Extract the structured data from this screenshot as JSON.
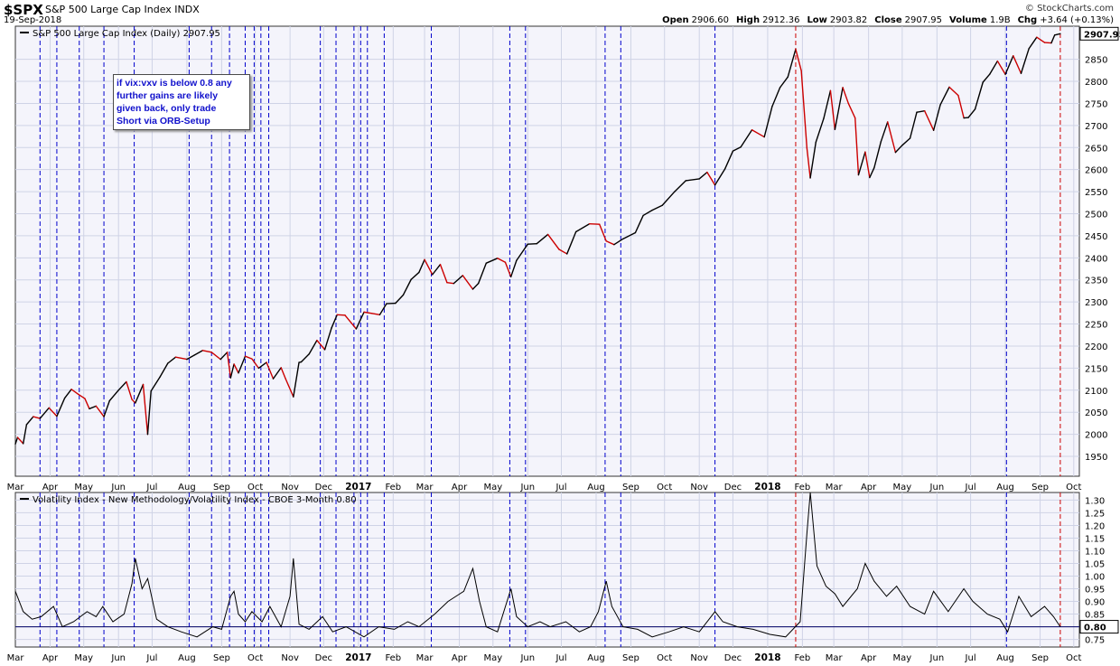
{
  "header": {
    "symbol": "$SPX",
    "name": "S&P 500 Large Cap Index INDX",
    "date": "19-Sep-2018",
    "brand": "© StockCharts.com",
    "quote": [
      {
        "label": "Open",
        "value": "2906.60"
      },
      {
        "label": "High",
        "value": "2912.36"
      },
      {
        "label": "Low",
        "value": "2903.82"
      },
      {
        "label": "Close",
        "value": "2907.95"
      },
      {
        "label": "Volume",
        "value": "1.9B"
      },
      {
        "label": "Chg",
        "value": "+3.64 (+0.13%)"
      }
    ]
  },
  "annotation": {
    "lines": [
      "if vix:vxv is below 0.8 any",
      "further gains are likely",
      "given back, only trade",
      "Short via ORB-Setup"
    ]
  },
  "colors": {
    "up_line": "#000000",
    "down_line": "#cc0000",
    "signal_blue": "#0000cc",
    "signal_red": "#cc0000",
    "plot_bg": "#f4f4fb",
    "grid": "#cfd3e6"
  },
  "chart_data": [
    {
      "type": "line",
      "title": "S&P 500 Large Cap Index (Daily) 2907.95",
      "last_value_label": "2907.95",
      "ylim": [
        1905,
        2925
      ],
      "y_ticks": [
        1950,
        2000,
        2050,
        2100,
        2150,
        2200,
        2250,
        2300,
        2350,
        2400,
        2450,
        2500,
        2550,
        2600,
        2650,
        2700,
        2750,
        2800,
        2850
      ],
      "grid": true,
      "series": [
        {
          "x": [
            "2016-03-01",
            "2016-03-03",
            "2016-03-08",
            "2016-03-11",
            "2016-03-17",
            "2016-03-23",
            "2016-03-31",
            "2016-04-07",
            "2016-04-14",
            "2016-04-20",
            "2016-04-26",
            "2016-05-02",
            "2016-05-06",
            "2016-05-12",
            "2016-05-19",
            "2016-05-24",
            "2016-06-01",
            "2016-06-08",
            "2016-06-13",
            "2016-06-16",
            "2016-06-23",
            "2016-06-27",
            "2016-06-30",
            "2016-07-08",
            "2016-07-15",
            "2016-07-22",
            "2016-08-01",
            "2016-08-08",
            "2016-08-15",
            "2016-08-23",
            "2016-08-31",
            "2016-09-06",
            "2016-09-09",
            "2016-09-12",
            "2016-09-16",
            "2016-09-22",
            "2016-09-28",
            "2016-10-04",
            "2016-10-11",
            "2016-10-17",
            "2016-10-24",
            "2016-10-28",
            "2016-11-04",
            "2016-11-09",
            "2016-11-11",
            "2016-11-18",
            "2016-11-25",
            "2016-12-02",
            "2016-12-08",
            "2016-12-13",
            "2016-12-20",
            "2016-12-30",
            "2017-01-06",
            "2017-01-13",
            "2017-01-20",
            "2017-01-26",
            "2017-02-03",
            "2017-02-10",
            "2017-02-17",
            "2017-02-24",
            "2017-03-01",
            "2017-03-08",
            "2017-03-15",
            "2017-03-21",
            "2017-03-27",
            "2017-04-04",
            "2017-04-13",
            "2017-04-18",
            "2017-04-25",
            "2017-05-05",
            "2017-05-12",
            "2017-05-17",
            "2017-05-22",
            "2017-06-01",
            "2017-06-09",
            "2017-06-19",
            "2017-06-29",
            "2017-07-06",
            "2017-07-14",
            "2017-07-26",
            "2017-08-04",
            "2017-08-10",
            "2017-08-17",
            "2017-08-25",
            "2017-09-05",
            "2017-09-12",
            "2017-09-20",
            "2017-09-29",
            "2017-10-10",
            "2017-10-20",
            "2017-11-01",
            "2017-11-08",
            "2017-11-15",
            "2017-11-24",
            "2017-12-01",
            "2017-12-08",
            "2017-12-18",
            "2017-12-29",
            "2018-01-05",
            "2018-01-12",
            "2018-01-19",
            "2018-01-26",
            "2018-01-31",
            "2018-02-05",
            "2018-02-08",
            "2018-02-13",
            "2018-02-20",
            "2018-02-26",
            "2018-03-02",
            "2018-03-09",
            "2018-03-14",
            "2018-03-20",
            "2018-03-23",
            "2018-03-29",
            "2018-04-02",
            "2018-04-06",
            "2018-04-12",
            "2018-04-18",
            "2018-04-25",
            "2018-05-01",
            "2018-05-08",
            "2018-05-14",
            "2018-05-21",
            "2018-05-29",
            "2018-06-04",
            "2018-06-12",
            "2018-06-20",
            "2018-06-25",
            "2018-06-29",
            "2018-07-05",
            "2018-07-12",
            "2018-07-18",
            "2018-07-25",
            "2018-08-01",
            "2018-08-08",
            "2018-08-15",
            "2018-08-22",
            "2018-08-29",
            "2018-09-05",
            "2018-09-11",
            "2018-09-14",
            "2018-09-19"
          ],
          "values": [
            1978,
            1993,
            1979,
            2022,
            2040,
            2036,
            2060,
            2041,
            2082,
            2102,
            2091,
            2081,
            2058,
            2064,
            2040,
            2076,
            2100,
            2119,
            2079,
            2071,
            2113,
            2000,
            2098,
            2130,
            2161,
            2175,
            2170,
            2180,
            2190,
            2186,
            2170,
            2186,
            2128,
            2159,
            2139,
            2177,
            2171,
            2150,
            2163,
            2126,
            2151,
            2126,
            2085,
            2163,
            2164,
            2182,
            2213,
            2192,
            2241,
            2271,
            2270,
            2239,
            2277,
            2274,
            2271,
            2296,
            2297,
            2316,
            2351,
            2367,
            2396,
            2362,
            2385,
            2344,
            2342,
            2360,
            2329,
            2342,
            2388,
            2399,
            2390,
            2357,
            2394,
            2431,
            2432,
            2453,
            2419,
            2409,
            2459,
            2477,
            2476,
            2438,
            2430,
            2443,
            2457,
            2496,
            2508,
            2519,
            2550,
            2575,
            2579,
            2594,
            2565,
            2602,
            2642,
            2651,
            2690,
            2674,
            2743,
            2786,
            2810,
            2873,
            2824,
            2649,
            2581,
            2662,
            2716,
            2779,
            2691,
            2786,
            2750,
            2717,
            2588,
            2640,
            2582,
            2604,
            2663,
            2708,
            2639,
            2655,
            2671,
            2730,
            2733,
            2689,
            2747,
            2787,
            2768,
            2717,
            2718,
            2737,
            2798,
            2816,
            2846,
            2816,
            2858,
            2818,
            2874,
            2900,
            2888,
            2887,
            2905,
            2908
          ]
        }
      ],
      "signal_dates_blue": [
        "2016-03-23",
        "2016-04-07",
        "2016-04-27",
        "2016-05-19",
        "2016-06-15",
        "2016-08-03",
        "2016-08-23",
        "2016-09-08",
        "2016-09-22",
        "2016-09-30",
        "2016-10-06",
        "2016-10-13",
        "2016-11-28",
        "2016-12-12",
        "2016-12-28",
        "2017-01-03",
        "2017-01-09",
        "2017-01-24",
        "2017-03-07",
        "2017-05-16",
        "2017-05-30",
        "2017-08-09",
        "2017-08-23",
        "2017-11-15",
        "2018-08-02"
      ],
      "signal_dates_red": [
        "2018-01-26",
        "2018-09-19"
      ],
      "x_ticks": [
        "Mar",
        "Apr",
        "May",
        "Jun",
        "Jul",
        "Aug",
        "Sep",
        "Oct",
        "Nov",
        "Dec",
        "2017",
        "Feb",
        "Mar",
        "Apr",
        "May",
        "Jun",
        "Jul",
        "Aug",
        "Sep",
        "Oct",
        "Nov",
        "Dec",
        "2018",
        "Feb",
        "Mar",
        "Apr",
        "May",
        "Jun",
        "Jul",
        "Aug",
        "Sep",
        "Oct"
      ]
    },
    {
      "type": "line",
      "title": "Volatility Index - New Methodology/Volatility Index - CBOE 3-Month 0.80",
      "last_value_label": "0.80",
      "reference_line": 0.8,
      "ylim": [
        0.72,
        1.33
      ],
      "y_ticks": [
        0.75,
        0.8,
        0.85,
        0.9,
        0.95,
        1.0,
        1.05,
        1.1,
        1.15,
        1.2,
        1.25,
        1.3
      ],
      "grid": true,
      "series": [
        {
          "x": [
            "2016-03-01",
            "2016-03-08",
            "2016-03-16",
            "2016-03-24",
            "2016-04-04",
            "2016-04-12",
            "2016-04-22",
            "2016-05-04",
            "2016-05-12",
            "2016-05-18",
            "2016-05-27",
            "2016-06-06",
            "2016-06-13",
            "2016-06-16",
            "2016-06-22",
            "2016-06-27",
            "2016-07-05",
            "2016-07-15",
            "2016-07-27",
            "2016-08-10",
            "2016-08-24",
            "2016-09-01",
            "2016-09-09",
            "2016-09-12",
            "2016-09-16",
            "2016-09-22",
            "2016-09-28",
            "2016-10-07",
            "2016-10-14",
            "2016-10-24",
            "2016-11-01",
            "2016-11-04",
            "2016-11-09",
            "2016-11-18",
            "2016-11-30",
            "2016-12-09",
            "2016-12-21",
            "2017-01-06",
            "2017-01-19",
            "2017-02-02",
            "2017-02-14",
            "2017-02-24",
            "2017-03-10",
            "2017-03-22",
            "2017-04-05",
            "2017-04-13",
            "2017-04-19",
            "2017-04-25",
            "2017-05-05",
            "2017-05-17",
            "2017-05-22",
            "2017-06-01",
            "2017-06-12",
            "2017-06-21",
            "2017-07-05",
            "2017-07-17",
            "2017-07-27",
            "2017-08-03",
            "2017-08-10",
            "2017-08-15",
            "2017-08-25",
            "2017-09-07",
            "2017-09-20",
            "2017-10-05",
            "2017-10-18",
            "2017-11-01",
            "2017-11-15",
            "2017-11-22",
            "2017-12-05",
            "2017-12-19",
            "2018-01-03",
            "2018-01-17",
            "2018-01-30",
            "2018-02-05",
            "2018-02-08",
            "2018-02-14",
            "2018-02-22",
            "2018-03-02",
            "2018-03-09",
            "2018-03-22",
            "2018-03-29",
            "2018-04-06",
            "2018-04-17",
            "2018-04-26",
            "2018-05-08",
            "2018-05-21",
            "2018-05-29",
            "2018-06-11",
            "2018-06-25",
            "2018-07-03",
            "2018-07-16",
            "2018-07-27",
            "2018-08-03",
            "2018-08-13",
            "2018-08-24",
            "2018-09-05",
            "2018-09-13",
            "2018-09-19"
          ],
          "values": [
            0.94,
            0.86,
            0.83,
            0.84,
            0.88,
            0.8,
            0.82,
            0.86,
            0.84,
            0.88,
            0.82,
            0.85,
            0.97,
            1.07,
            0.95,
            0.99,
            0.83,
            0.8,
            0.78,
            0.76,
            0.8,
            0.79,
            0.92,
            0.94,
            0.85,
            0.82,
            0.86,
            0.82,
            0.88,
            0.8,
            0.92,
            1.07,
            0.81,
            0.79,
            0.84,
            0.78,
            0.8,
            0.76,
            0.8,
            0.79,
            0.82,
            0.8,
            0.85,
            0.9,
            0.94,
            1.03,
            0.9,
            0.8,
            0.78,
            0.95,
            0.84,
            0.8,
            0.82,
            0.8,
            0.82,
            0.78,
            0.8,
            0.86,
            0.98,
            0.88,
            0.8,
            0.79,
            0.76,
            0.78,
            0.8,
            0.78,
            0.86,
            0.82,
            0.8,
            0.79,
            0.77,
            0.76,
            0.82,
            1.17,
            1.33,
            1.04,
            0.96,
            0.93,
            0.88,
            0.95,
            1.05,
            0.98,
            0.92,
            0.96,
            0.88,
            0.85,
            0.94,
            0.86,
            0.95,
            0.9,
            0.85,
            0.83,
            0.78,
            0.92,
            0.84,
            0.88,
            0.84,
            0.8
          ]
        }
      ]
    }
  ]
}
